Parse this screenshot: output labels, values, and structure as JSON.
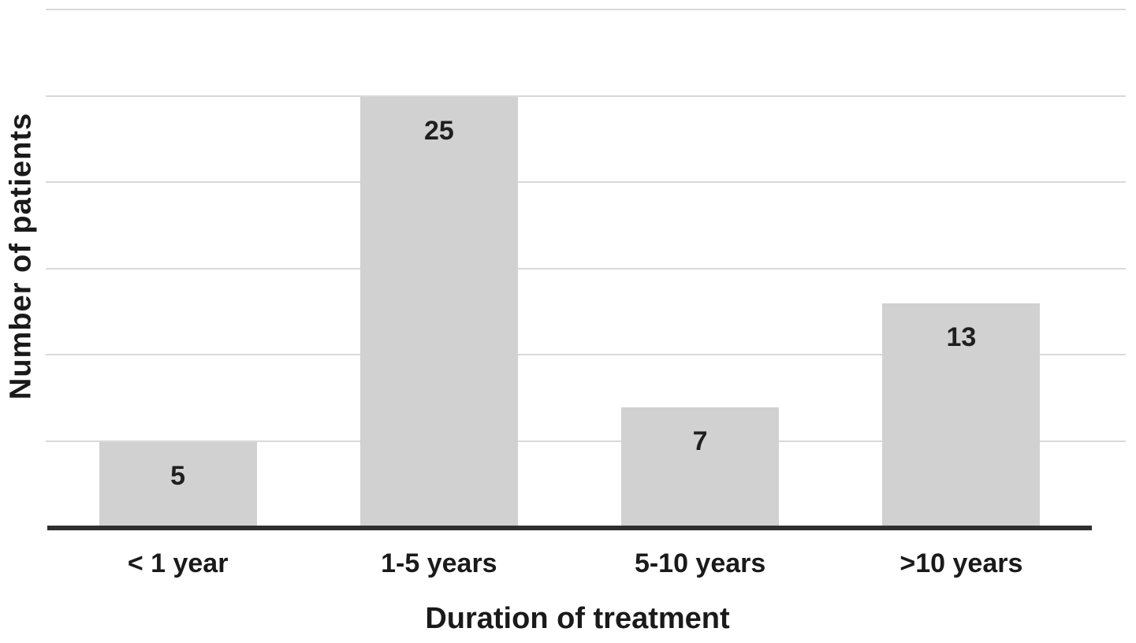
{
  "chart_data": {
    "type": "bar",
    "title": "",
    "categories": [
      "< 1 year",
      "1-5 years",
      "5-10 years",
      ">10 years"
    ],
    "values": [
      5,
      25,
      7,
      13
    ],
    "value_labels": [
      "5",
      "25",
      "7",
      "13"
    ],
    "xlabel": "Duration of treatment",
    "ylabel": "Number of patients",
    "ylim": [
      0,
      30
    ],
    "gridline_step": 5,
    "grid": "horizontal-only",
    "legend_position": "none",
    "colors": {
      "bar_fill": "#d1d1d1",
      "gridline": "#d9d9d9",
      "axis_line": "#2f2f2f",
      "text": "#1a1a1a"
    }
  }
}
